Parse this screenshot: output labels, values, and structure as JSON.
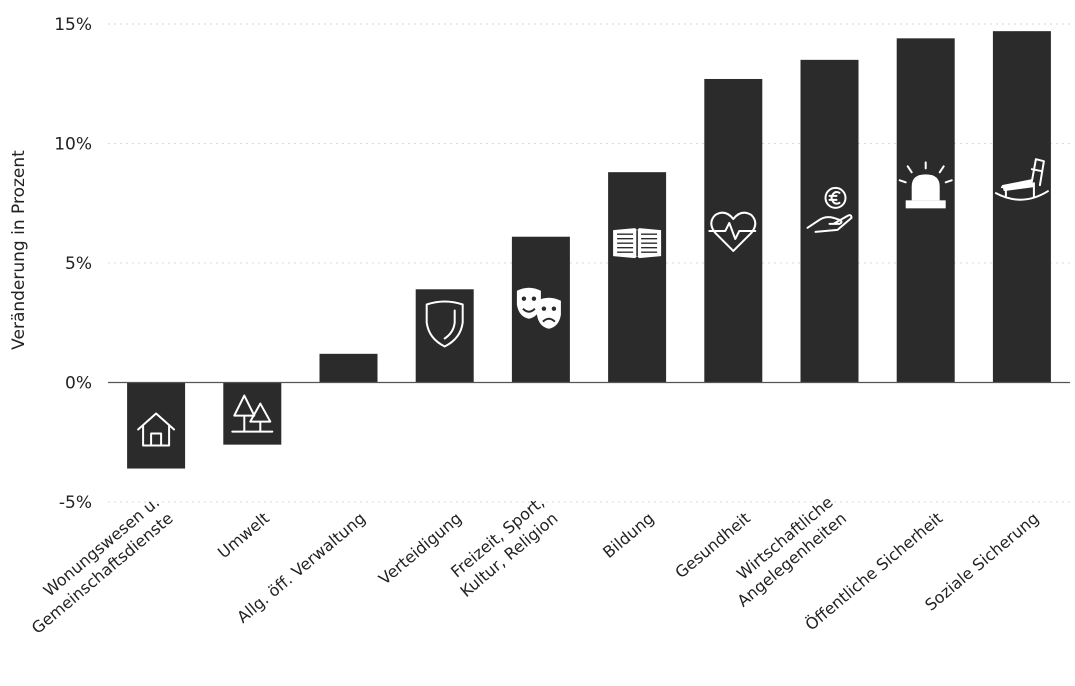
{
  "chart_data": {
    "type": "bar",
    "title": "",
    "xlabel": "",
    "ylabel": "Veränderung in Prozent",
    "ylim": [
      -5,
      15
    ],
    "yticks": [
      -5,
      0,
      5,
      10,
      15
    ],
    "ytick_labels": [
      "-5%",
      "0%",
      "5%",
      "10%",
      "15%"
    ],
    "grid": true,
    "bar_color": "#2b2b2b",
    "categories": [
      [
        "Wonungswesen u.",
        "Gemeinschaftsdienste"
      ],
      [
        "Umwelt"
      ],
      [
        "Allg. öff. Verwaltung"
      ],
      [
        "Verteidigung"
      ],
      [
        "Freizeit, Sport,",
        "Kultur, Religion"
      ],
      [
        "Bildung"
      ],
      [
        "Gesundheit"
      ],
      [
        "Wirtschaftliche",
        "Angelegenheiten"
      ],
      [
        "Öffentliche Sicherheit"
      ],
      [
        "Soziale Sicherung"
      ]
    ],
    "values": [
      -3.6,
      -2.6,
      1.2,
      3.9,
      6.1,
      8.8,
      12.7,
      13.5,
      14.4,
      14.7
    ],
    "icons": [
      "house-icon",
      "trees-icon",
      "",
      "shield-icon",
      "theater-masks-icon",
      "book-icon",
      "heart-pulse-icon",
      "euro-hand-icon",
      "siren-icon",
      "rocking-chair-icon"
    ]
  }
}
